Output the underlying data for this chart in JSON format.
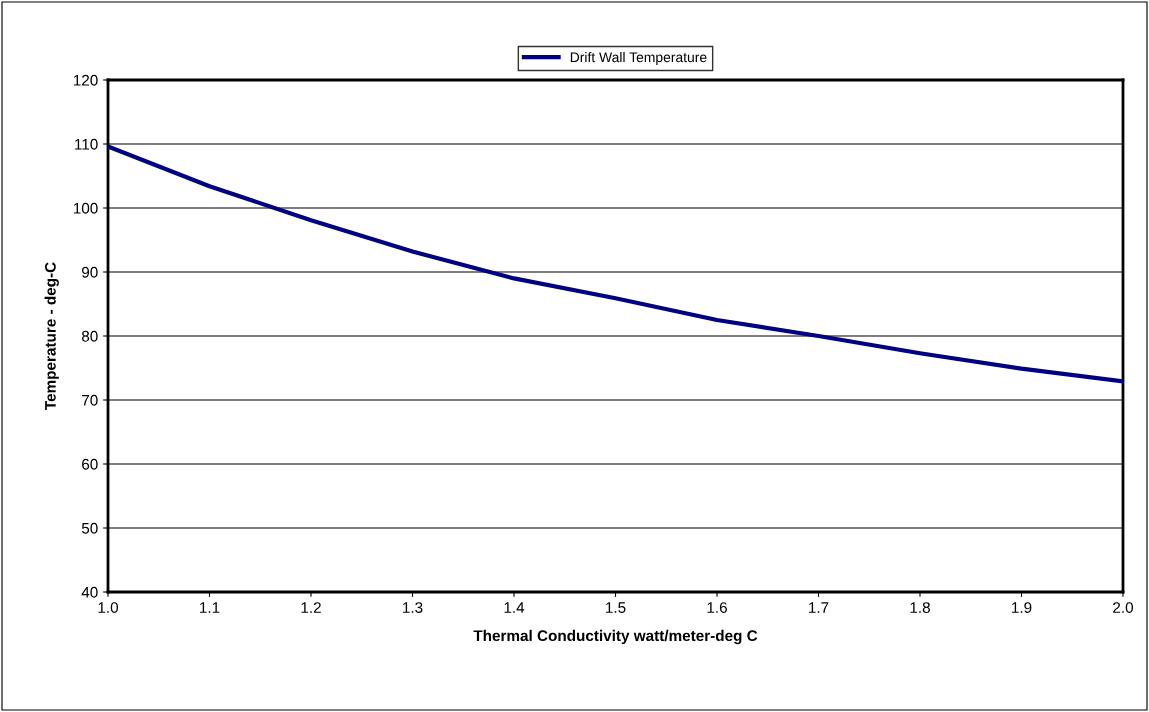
{
  "chart_data": {
    "type": "line",
    "xlabel": "Thermal Conductivity watt/meter-deg C",
    "ylabel": "Temperature - deg-C",
    "x": [
      1.0,
      1.1,
      1.2,
      1.3,
      1.4,
      1.5,
      1.6,
      1.7,
      1.8,
      1.9,
      2.0
    ],
    "series": [
      {
        "name": "Drift Wall Temperature",
        "color": "#000080",
        "values": [
          109.6,
          103.4,
          98.1,
          93.2,
          89.0,
          85.9,
          82.5,
          80.0,
          77.3,
          74.9,
          72.9
        ]
      }
    ],
    "xlim": [
      1.0,
      2.0
    ],
    "xticks": [
      {
        "value": 1.0,
        "label": "1.0"
      },
      {
        "value": 1.1,
        "label": "1.1"
      },
      {
        "value": 1.2,
        "label": "1.2"
      },
      {
        "value": 1.3,
        "label": "1.3"
      },
      {
        "value": 1.4,
        "label": "1.4"
      },
      {
        "value": 1.5,
        "label": "1.5"
      },
      {
        "value": 1.6,
        "label": "1.6"
      },
      {
        "value": 1.7,
        "label": "1.7"
      },
      {
        "value": 1.8,
        "label": "1.8"
      },
      {
        "value": 1.9,
        "label": "1.9"
      },
      {
        "value": 2.0,
        "label": "2.0"
      }
    ],
    "ylim": [
      40,
      120
    ],
    "yticks": [
      40,
      50,
      60,
      70,
      80,
      90,
      100,
      110,
      120
    ],
    "grid": "y",
    "legend": "top",
    "marker": "none",
    "line_style": "solid"
  }
}
